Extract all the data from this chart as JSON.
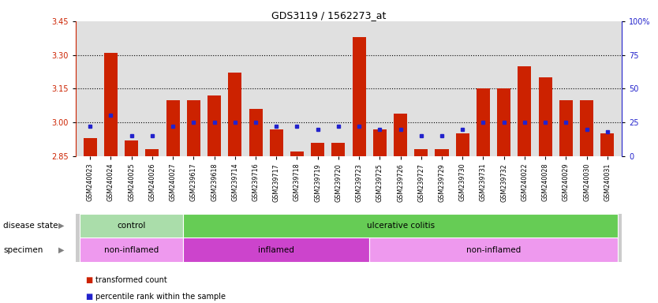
{
  "title": "GDS3119 / 1562273_at",
  "samples": [
    "GSM240023",
    "GSM240024",
    "GSM240025",
    "GSM240026",
    "GSM240027",
    "GSM239617",
    "GSM239618",
    "GSM239714",
    "GSM239716",
    "GSM239717",
    "GSM239718",
    "GSM239719",
    "GSM239720",
    "GSM239723",
    "GSM239725",
    "GSM239726",
    "GSM239727",
    "GSM239729",
    "GSM239730",
    "GSM239731",
    "GSM239732",
    "GSM240022",
    "GSM240028",
    "GSM240029",
    "GSM240030",
    "GSM240031"
  ],
  "transformed_count": [
    2.93,
    3.31,
    2.92,
    2.88,
    3.1,
    3.1,
    3.12,
    3.22,
    3.06,
    2.97,
    2.87,
    2.91,
    2.91,
    3.38,
    2.97,
    3.04,
    2.88,
    2.88,
    2.95,
    3.15,
    3.15,
    3.25,
    3.2,
    3.1,
    3.1,
    2.95
  ],
  "percentile_rank": [
    22,
    30,
    15,
    15,
    22,
    25,
    25,
    25,
    25,
    22,
    22,
    20,
    22,
    22,
    20,
    20,
    15,
    15,
    20,
    25,
    25,
    25,
    25,
    25,
    20,
    18
  ],
  "ymin": 2.85,
  "ymax": 3.45,
  "yticks": [
    2.85,
    3.0,
    3.15,
    3.3,
    3.45
  ],
  "y2ticks": [
    0,
    25,
    50,
    75,
    100
  ],
  "bar_color": "#cc2200",
  "dot_color": "#2222cc",
  "bg_color": "#e0e0e0",
  "disease_state_groups": [
    {
      "label": "control",
      "start": 0,
      "end": 5,
      "color": "#aaddaa"
    },
    {
      "label": "ulcerative colitis",
      "start": 5,
      "end": 26,
      "color": "#66cc55"
    }
  ],
  "specimen_groups": [
    {
      "label": "non-inflamed",
      "start": 0,
      "end": 5,
      "color": "#ee99ee"
    },
    {
      "label": "inflamed",
      "start": 5,
      "end": 14,
      "color": "#cc44cc"
    },
    {
      "label": "non-inflamed",
      "start": 14,
      "end": 26,
      "color": "#ee99ee"
    }
  ],
  "label_disease": "disease state",
  "label_specimen": "specimen",
  "legend_red": "transformed count",
  "legend_blue": "percentile rank within the sample"
}
